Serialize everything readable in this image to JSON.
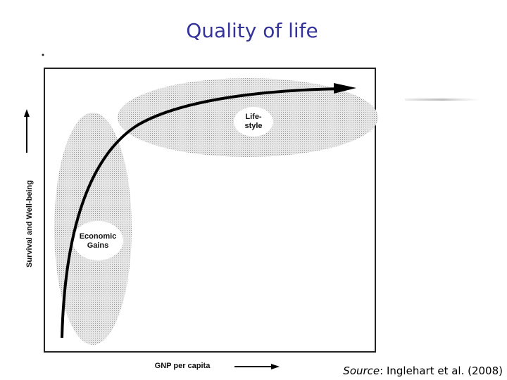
{
  "title": "Quality of life",
  "diagram": {
    "y_axis_label": "Survival and Well-being",
    "x_axis_label": "GNP per capita",
    "regions": [
      {
        "label_lines": [
          "Life-",
          "style"
        ]
      },
      {
        "label_lines": [
          "Economic",
          "Gains"
        ]
      }
    ]
  },
  "source": {
    "label": "Source",
    "text": ": Inglehart et al. (2008)"
  }
}
